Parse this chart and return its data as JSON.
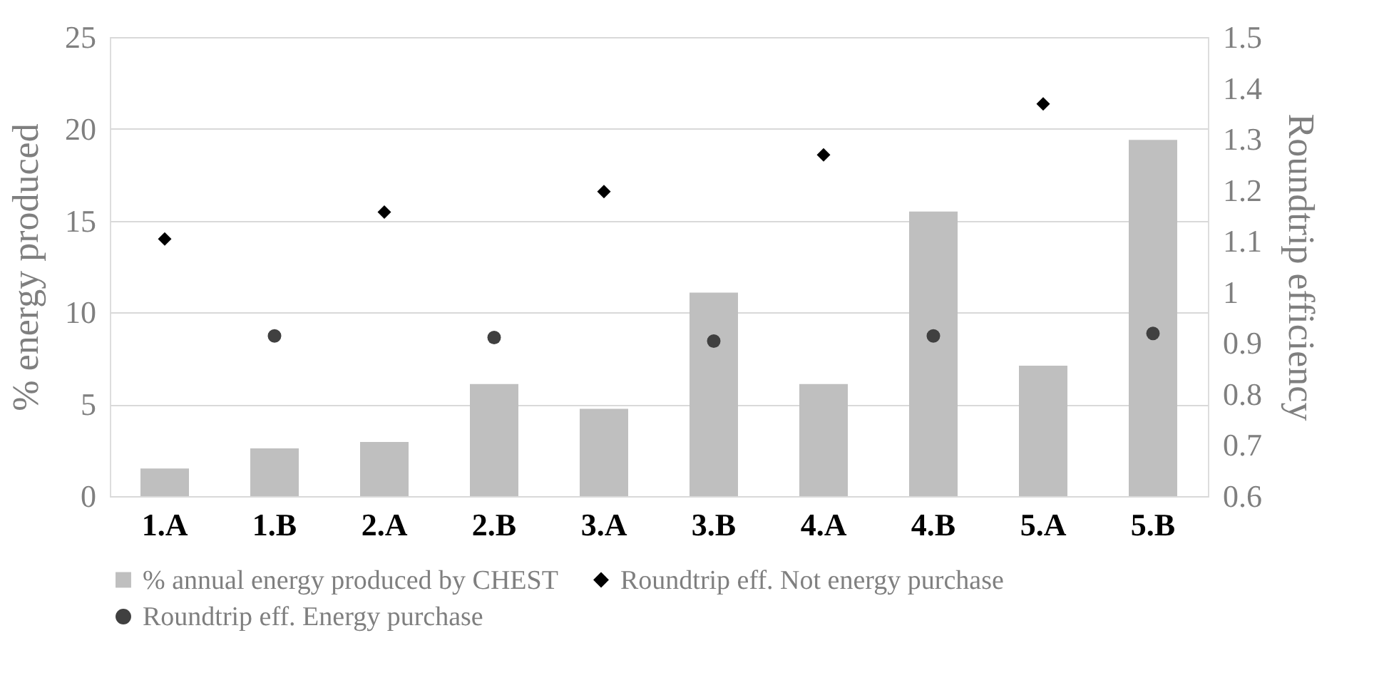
{
  "chart_data": {
    "type": "bar",
    "ylabel": "% energy  produced",
    "y2label": "Roundtrip efficiency",
    "categories": [
      "1.A",
      "1.B",
      "2.A",
      "2.B",
      "3.A",
      "3.B",
      "4.A",
      "4.B",
      "5.A",
      "5.B"
    ],
    "series": [
      {
        "name": "% annual energy produced by CHEST",
        "color": "#bfbfbf",
        "values": [
          1.5,
          2.6,
          2.95,
          6.1,
          4.76,
          11.08,
          6.1,
          15.5,
          7.1,
          19.4
        ]
      },
      {
        "name": "Roundtrip eff. Not energy purchase",
        "type": "scatter",
        "marker": "diamond",
        "axis": "y2",
        "color": "#000000",
        "values": [
          1.104,
          null,
          1.157,
          null,
          1.197,
          null,
          1.269,
          null,
          1.369,
          null
        ]
      },
      {
        "name": "Roundtrip eff. Energy purchase",
        "type": "scatter",
        "marker": "circle",
        "axis": "y2",
        "color": "#404040",
        "values": [
          null,
          0.914,
          null,
          0.911,
          null,
          0.904,
          null,
          0.914,
          null,
          0.919
        ]
      }
    ],
    "ylim": [
      0,
      25
    ],
    "yticks": [
      0,
      5,
      10,
      15,
      20,
      25
    ],
    "y2lim": [
      0.6,
      1.5
    ],
    "y2ticks": [
      0.6,
      0.7,
      0.8,
      0.9,
      1,
      1.1,
      1.2,
      1.3,
      1.4,
      1.5
    ],
    "grid": "y",
    "legend": "bottom"
  }
}
